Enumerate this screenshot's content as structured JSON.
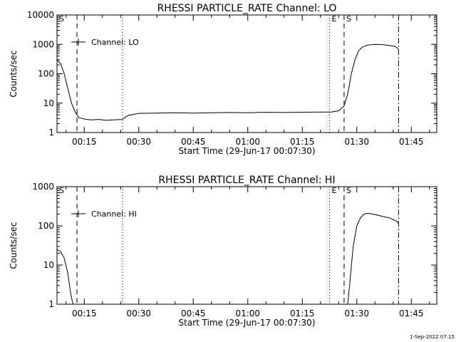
{
  "footer_timestamp": "1-Sep-2022 07:15",
  "chart_data": [
    {
      "type": "line",
      "title": "RHESSI PARTICLE_RATE Channel: LO",
      "xlabel": "Start Time (29-Jun-17 00:07:30)",
      "ylabel": "Counts/sec",
      "yscale": "log",
      "xlim_minutes": [
        7.5,
        112
      ],
      "ylim": [
        1,
        10000
      ],
      "xtick_labels": [
        "00:15",
        "00:30",
        "00:45",
        "01:00",
        "01:15",
        "01:30",
        "01:45"
      ],
      "xtick_minutes": [
        15,
        30,
        45,
        60,
        75,
        90,
        105
      ],
      "ytick_labels": [
        "1",
        "10",
        "100",
        "1000",
        "10000"
      ],
      "ytick_values": [
        1,
        10,
        100,
        1000,
        10000
      ],
      "legend": {
        "label": "Channel: LO",
        "placement": "top-left"
      },
      "markers": [
        {
          "label": "S",
          "minute": 7.5,
          "style": "solid"
        },
        {
          "label": "",
          "minute": 13,
          "style": "dashed"
        },
        {
          "label": "",
          "minute": 25.5,
          "style": "dotted"
        },
        {
          "label": "E",
          "minute": 82.5,
          "style": "dotted"
        },
        {
          "label": "S",
          "minute": 86.5,
          "style": "dashed"
        },
        {
          "label": "",
          "minute": 101.5,
          "style": "dashdot"
        }
      ],
      "series": [
        {
          "minutes": [
            7.5,
            8.5,
            9.5,
            10.5,
            11.5,
            12.5,
            13.5,
            14.5,
            15.5,
            17,
            19,
            21,
            23,
            25.5,
            27,
            30,
            35,
            40,
            45,
            50,
            55,
            60,
            65,
            70,
            75,
            80,
            83,
            85,
            86.5,
            87.5,
            88.5,
            89.5,
            90.5,
            91.5,
            93,
            95,
            97,
            99,
            100.5,
            101.5
          ],
          "values": [
            300,
            220,
            100,
            30,
            10,
            5,
            3.2,
            3,
            2.8,
            2.7,
            2.8,
            2.6,
            2.7,
            2.8,
            3.8,
            4.5,
            4.6,
            4.7,
            4.6,
            4.7,
            4.8,
            4.7,
            4.9,
            4.8,
            4.9,
            5,
            5,
            5.5,
            8,
            20,
            100,
            300,
            600,
            800,
            950,
            1000,
            980,
            920,
            850,
            700
          ]
        }
      ]
    },
    {
      "type": "line",
      "title": "RHESSI PARTICLE_RATE Channel: HI",
      "xlabel": "Start Time (29-Jun-17 00:07:30)",
      "ylabel": "Counts/sec",
      "yscale": "log",
      "xlim_minutes": [
        7.5,
        112
      ],
      "ylim": [
        1,
        1000
      ],
      "xtick_labels": [
        "00:15",
        "00:30",
        "00:45",
        "01:00",
        "01:15",
        "01:30",
        "01:45"
      ],
      "xtick_minutes": [
        15,
        30,
        45,
        60,
        75,
        90,
        105
      ],
      "ytick_labels": [
        "1",
        "10",
        "100",
        "1000"
      ],
      "ytick_values": [
        1,
        10,
        100,
        1000
      ],
      "legend": {
        "label": "Channel: HI",
        "placement": "top-left"
      },
      "markers": [
        {
          "label": "S",
          "minute": 7.5,
          "style": "solid"
        },
        {
          "label": "",
          "minute": 13,
          "style": "dashed"
        },
        {
          "label": "",
          "minute": 25.5,
          "style": "dotted"
        },
        {
          "label": "E",
          "minute": 82.5,
          "style": "dotted"
        },
        {
          "label": "S",
          "minute": 86.5,
          "style": "dashed"
        },
        {
          "label": "",
          "minute": 101.5,
          "style": "dashdot"
        }
      ],
      "series": [
        {
          "minutes": [
            7.5,
            8.5,
            9.5,
            10.5,
            11.2,
            11.8,
            12.0
          ],
          "values": [
            25,
            22,
            15,
            6,
            2,
            1.1,
            1
          ]
        },
        {
          "minutes": [
            87.5,
            88,
            89,
            90,
            91,
            92,
            93,
            95,
            97,
            99,
            101,
            101.5
          ],
          "values": [
            1,
            3,
            30,
            100,
            160,
            200,
            210,
            195,
            175,
            160,
            130,
            115
          ]
        }
      ]
    }
  ]
}
